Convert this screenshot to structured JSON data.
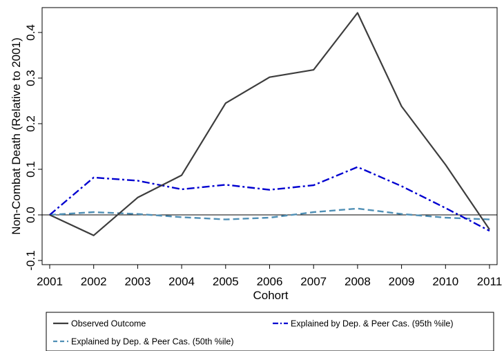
{
  "chart_data": {
    "type": "line",
    "x": [
      2001,
      2002,
      2003,
      2004,
      2005,
      2006,
      2007,
      2008,
      2009,
      2010,
      2011
    ],
    "x_tick_labels": [
      "2001",
      "2002",
      "2003",
      "2004",
      "2005",
      "2006",
      "2007",
      "2008",
      "2009",
      "2010",
      "2011"
    ],
    "y_ticks": [
      -0.1,
      0.0,
      0.1,
      0.2,
      0.3,
      0.4
    ],
    "y_tick_labels": [
      "-0.1",
      "0.0",
      "0.1",
      "0.2",
      "0.3",
      "0.4"
    ],
    "xlim": [
      2001,
      2011
    ],
    "ylim": [
      -0.11,
      0.46
    ],
    "xlabel": "Cohort",
    "ylabel": "Non-Combat Death (Relative to 2001)",
    "title": "",
    "grid": false,
    "reference_line_y": 0,
    "legend_position": "bottom",
    "series": [
      {
        "name": "Observed Outcome",
        "style": "solid",
        "color": "#3d3d3d",
        "values": [
          0.0,
          -0.045,
          0.038,
          0.087,
          0.245,
          0.302,
          0.318,
          0.443,
          0.238,
          0.11,
          -0.032
        ]
      },
      {
        "name": "Explained by Dep. & Peer Cas. (95th %ile)",
        "style": "dashdot",
        "color": "#0000d0",
        "values": [
          0.0,
          0.082,
          0.075,
          0.056,
          0.066,
          0.055,
          0.065,
          0.105,
          0.063,
          0.015,
          -0.035
        ]
      },
      {
        "name": "Explained by Dep. & Peer Cas. (50th %ile)",
        "style": "dash",
        "color": "#4f8fb5",
        "values": [
          0.0,
          0.006,
          0.002,
          -0.005,
          -0.01,
          -0.006,
          0.006,
          0.014,
          0.002,
          -0.006,
          -0.01
        ]
      }
    ]
  }
}
